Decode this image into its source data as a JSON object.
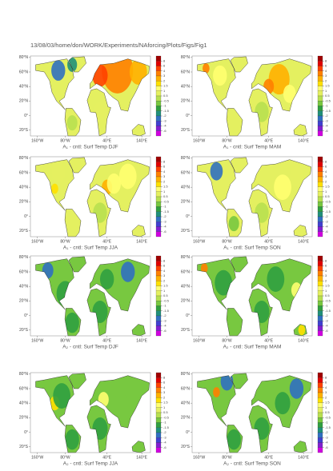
{
  "header": "13/08/03/home/don/WORK/Experiments/NAforcing/Plots/Figs/Fig1",
  "colorbar": {
    "colors": [
      "#a00000",
      "#e00000",
      "#ff4000",
      "#ff8000",
      "#ffb000",
      "#ffe000",
      "#ffff70",
      "#e4f060",
      "#b8e050",
      "#78c840",
      "#30a040",
      "#20907a",
      "#3070c0",
      "#4040d0",
      "#8020d0",
      "#d000e0"
    ],
    "labels": [
      8,
      6,
      4,
      3,
      2,
      1.5,
      1,
      0.5,
      -0.5,
      -1,
      -1.5,
      -2,
      -3,
      -4,
      -6
    ]
  },
  "panels": [
    {
      "title": "A₁ - cntl: Surf Temp DJF",
      "xlim": [
        -180,
        165
      ],
      "ylim": [
        -28,
        82
      ],
      "xticks": [
        {
          "value": -160,
          "label": "160°W"
        },
        {
          "value": -80,
          "label": "80°W"
        },
        {
          "value": 40,
          "label": "40°E"
        },
        {
          "value": 140,
          "label": "140°E"
        }
      ],
      "yticks": [
        {
          "value": 80,
          "label": "80°N"
        },
        {
          "value": 60,
          "label": "60°N"
        },
        {
          "value": 40,
          "label": "40°N"
        },
        {
          "value": 20,
          "label": "20°N"
        },
        {
          "value": 0,
          "label": "0°"
        },
        {
          "value": -20,
          "label": "20°S"
        }
      ]
    },
    {
      "title": "A₁ - cntl: Surf Temp MAM",
      "xlim": [
        -180,
        165
      ],
      "ylim": [
        -28,
        82
      ],
      "xticks": [
        {
          "value": -160,
          "label": "160°W"
        },
        {
          "value": -80,
          "label": "80°W"
        },
        {
          "value": 40,
          "label": "40°E"
        },
        {
          "value": 140,
          "label": "140°E"
        }
      ],
      "yticks": [
        {
          "value": 80,
          "label": "80°N"
        },
        {
          "value": 60,
          "label": "60°N"
        },
        {
          "value": 40,
          "label": "40°N"
        },
        {
          "value": 20,
          "label": "20°N"
        },
        {
          "value": 0,
          "label": "0°"
        },
        {
          "value": -20,
          "label": "20°S"
        }
      ]
    },
    {
      "title": "A₁ - cntl: Surf Temp JJA",
      "xlim": [
        -180,
        165
      ],
      "ylim": [
        -28,
        82
      ],
      "xticks": [
        {
          "value": -160,
          "label": "160°W"
        },
        {
          "value": -80,
          "label": "80°W"
        },
        {
          "value": 40,
          "label": "40°E"
        },
        {
          "value": 140,
          "label": "140°E"
        }
      ],
      "yticks": [
        {
          "value": 80,
          "label": "80°N"
        },
        {
          "value": 60,
          "label": "60°N"
        },
        {
          "value": 40,
          "label": "40°N"
        },
        {
          "value": 20,
          "label": "20°N"
        },
        {
          "value": 0,
          "label": "0°"
        },
        {
          "value": -20,
          "label": "20°S"
        }
      ]
    },
    {
      "title": "A₁ - cntl: Surf Temp SON",
      "xlim": [
        -180,
        165
      ],
      "ylim": [
        -28,
        82
      ],
      "xticks": [
        {
          "value": -160,
          "label": "160°W"
        },
        {
          "value": -80,
          "label": "80°W"
        },
        {
          "value": 40,
          "label": "40°E"
        },
        {
          "value": 140,
          "label": "140°E"
        }
      ],
      "yticks": [
        {
          "value": 80,
          "label": "80°N"
        },
        {
          "value": 60,
          "label": "60°N"
        },
        {
          "value": 40,
          "label": "40°N"
        },
        {
          "value": 20,
          "label": "20°N"
        },
        {
          "value": 0,
          "label": "0°"
        },
        {
          "value": -20,
          "label": "20°S"
        }
      ]
    },
    {
      "title": "A₂ - cntl: Surf Temp DJF",
      "xlim": [
        -180,
        165
      ],
      "ylim": [
        -28,
        82
      ],
      "xticks": [
        {
          "value": -160,
          "label": "160°W"
        },
        {
          "value": -80,
          "label": "80°W"
        },
        {
          "value": 40,
          "label": "40°E"
        },
        {
          "value": 140,
          "label": "140°E"
        }
      ],
      "yticks": [
        {
          "value": 80,
          "label": "80°N"
        },
        {
          "value": 60,
          "label": "60°N"
        },
        {
          "value": 40,
          "label": "40°N"
        },
        {
          "value": 20,
          "label": "20°N"
        },
        {
          "value": 0,
          "label": "0°"
        },
        {
          "value": -20,
          "label": "20°S"
        }
      ]
    },
    {
      "title": "A₂ - cntl: Surf Temp MAM",
      "xlim": [
        -180,
        165
      ],
      "ylim": [
        -28,
        82
      ],
      "xticks": [
        {
          "value": -160,
          "label": "160°W"
        },
        {
          "value": -80,
          "label": "80°W"
        },
        {
          "value": 40,
          "label": "40°E"
        },
        {
          "value": 140,
          "label": "140°E"
        }
      ],
      "yticks": [
        {
          "value": 80,
          "label": "80°N"
        },
        {
          "value": 60,
          "label": "60°N"
        },
        {
          "value": 40,
          "label": "40°N"
        },
        {
          "value": 20,
          "label": "20°N"
        },
        {
          "value": 0,
          "label": "0°"
        },
        {
          "value": -20,
          "label": "20°S"
        }
      ]
    },
    {
      "title": "A₂ - cntl: Surf Temp JJA",
      "xlim": [
        -180,
        165
      ],
      "ylim": [
        -28,
        82
      ],
      "xticks": [
        {
          "value": -160,
          "label": "160°W"
        },
        {
          "value": -80,
          "label": "80°W"
        },
        {
          "value": 40,
          "label": "40°E"
        },
        {
          "value": 140,
          "label": "140°E"
        }
      ],
      "yticks": [
        {
          "value": 80,
          "label": "80°N"
        },
        {
          "value": 60,
          "label": "60°N"
        },
        {
          "value": 40,
          "label": "40°N"
        },
        {
          "value": 20,
          "label": "20°N"
        },
        {
          "value": 0,
          "label": "0°"
        },
        {
          "value": -20,
          "label": "20°S"
        }
      ]
    },
    {
      "title": "A₂ - cntl: Surf Temp SON",
      "xlim": [
        -180,
        165
      ],
      "ylim": [
        -28,
        82
      ],
      "xticks": [
        {
          "value": -160,
          "label": "160°W"
        },
        {
          "value": -80,
          "label": "80°W"
        },
        {
          "value": 40,
          "label": "40°E"
        },
        {
          "value": 140,
          "label": "140°E"
        }
      ],
      "yticks": [
        {
          "value": 80,
          "label": "80°N"
        },
        {
          "value": 60,
          "label": "60°N"
        },
        {
          "value": 40,
          "label": "40°N"
        },
        {
          "value": 20,
          "label": "20°N"
        },
        {
          "value": 0,
          "label": "0°"
        },
        {
          "value": -20,
          "label": "20°S"
        }
      ]
    }
  ]
}
